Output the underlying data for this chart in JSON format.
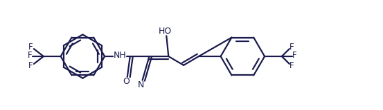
{
  "bg_color": "#ffffff",
  "line_color": "#1a1a4e",
  "line_width": 1.6,
  "figsize": [
    5.53,
    1.6
  ],
  "dpi": 100,
  "xlim": [
    0,
    5.53
  ],
  "ylim": [
    0,
    1.6
  ]
}
